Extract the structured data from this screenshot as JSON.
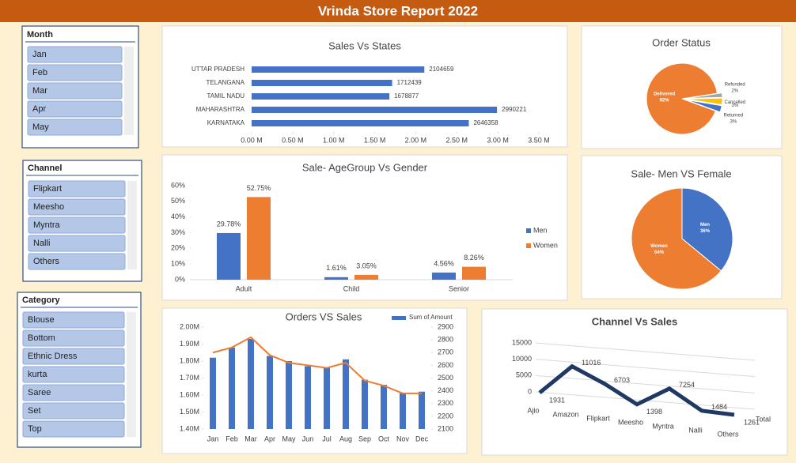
{
  "title": "Vrinda Store Report 2022",
  "slicers": [
    {
      "title": "Month",
      "items": [
        "Jan",
        "Feb",
        "Mar",
        "Apr",
        "May"
      ]
    },
    {
      "title": "Channel",
      "items": [
        "Flipkart",
        "Meesho",
        "Myntra",
        "Nalli",
        "Others"
      ]
    },
    {
      "title": "Category",
      "items": [
        "Blouse",
        "Bottom",
        "Ethnic Dress",
        "kurta",
        "Saree",
        "Set",
        "Top"
      ]
    }
  ],
  "chart_data": [
    {
      "type": "bar",
      "orientation": "horizontal",
      "title": "Sales Vs States",
      "categories": [
        "UTTAR PRADESH",
        "TELANGANA",
        "TAMIL NADU",
        "MAHARASHTRA",
        "KARNATAKA"
      ],
      "values": [
        2104659,
        1712439,
        1678877,
        2990221,
        2646358
      ],
      "color": "#4472c4",
      "xlim": [
        0,
        3500000
      ],
      "xticks": [
        {
          "value": 0,
          "label": "0.00 M"
        },
        {
          "value": 500000,
          "label": "0.50 M"
        },
        {
          "value": 1000000,
          "label": "1.00 M"
        },
        {
          "value": 1500000,
          "label": "1.50 M"
        },
        {
          "value": 2000000,
          "label": "2.00 M"
        },
        {
          "value": 2500000,
          "label": "2.50 M"
        },
        {
          "value": 3000000,
          "label": "3.00 M"
        },
        {
          "value": 3500000,
          "label": "3.50 M"
        }
      ]
    },
    {
      "type": "pie",
      "title": "Order Status",
      "categories": [
        "Delivered",
        "Refunded",
        "Cancelled",
        "Returned"
      ],
      "values": [
        92,
        2,
        3,
        3
      ],
      "value_labels": [
        "92%",
        "2%",
        "3%",
        "3%"
      ],
      "colors": [
        "#ed7d31",
        "#a5a5a5",
        "#ffc000",
        "#4472c4"
      ]
    },
    {
      "type": "groupedbar",
      "title": "Sale- AgeGroup Vs Gender",
      "categories": [
        "Adult",
        "Child",
        "Senior"
      ],
      "series": [
        {
          "name": "Men",
          "color": "#4472c4",
          "values": [
            29.78,
            1.61,
            4.56
          ],
          "value_labels": [
            "29.78%",
            "1.61%",
            "4.56%"
          ]
        },
        {
          "name": "Women",
          "color": "#ed7d31",
          "values": [
            52.75,
            3.05,
            8.26
          ],
          "value_labels": [
            "52.75%",
            "3.05%",
            "8.26%"
          ]
        }
      ],
      "ylim": [
        0,
        60
      ],
      "yticks": [
        {
          "value": 0,
          "label": "0%"
        },
        {
          "value": 10,
          "label": "10%"
        },
        {
          "value": 20,
          "label": "20%"
        },
        {
          "value": 30,
          "label": "30%"
        },
        {
          "value": 40,
          "label": "40%"
        },
        {
          "value": 50,
          "label": "50%"
        },
        {
          "value": 60,
          "label": "60%"
        }
      ],
      "legend": "right"
    },
    {
      "type": "pie",
      "title": "Sale- Men VS Female",
      "categories": [
        "Men",
        "Women"
      ],
      "values": [
        36,
        64
      ],
      "value_labels": [
        "36%",
        "64%"
      ],
      "colors": [
        "#4472c4",
        "#ed7d31"
      ]
    },
    {
      "type": "combo",
      "title": "Orders VS Sales",
      "categories": [
        "Jan",
        "Feb",
        "Mar",
        "Apr",
        "May",
        "Jun",
        "Jul",
        "Aug",
        "Sep",
        "Oct",
        "Nov",
        "Dec"
      ],
      "series": [
        {
          "name": "Sum of Amount",
          "type": "bar",
          "color": "#4472c4",
          "values": [
            1820000,
            1880000,
            1930000,
            1830000,
            1800000,
            1770000,
            1760000,
            1810000,
            1690000,
            1660000,
            1610000,
            1620000
          ]
        },
        {
          "type": "line",
          "axis": "y2",
          "color": "#ed7d31",
          "values": [
            2700,
            2740,
            2820,
            2680,
            2620,
            2600,
            2580,
            2620,
            2480,
            2440,
            2380,
            2380
          ]
        }
      ],
      "ylim": [
        1400000,
        2000000
      ],
      "yticks": [
        {
          "value": 1400000,
          "label": "1.40M"
        },
        {
          "value": 1500000,
          "label": "1.50M"
        },
        {
          "value": 1600000,
          "label": "1.60M"
        },
        {
          "value": 1700000,
          "label": "1.70M"
        },
        {
          "value": 1800000,
          "label": "1.80M"
        },
        {
          "value": 1900000,
          "label": "1.90M"
        },
        {
          "value": 2000000,
          "label": "2.00M"
        }
      ],
      "y2lim": [
        2100,
        2900
      ],
      "y2ticks": [
        2100,
        2200,
        2300,
        2400,
        2500,
        2600,
        2700,
        2800,
        2900
      ],
      "legend": "top-right"
    },
    {
      "type": "line3d",
      "title": "Channel Vs Sales",
      "categories": [
        "Ajio",
        "Amazon",
        "Flipkart",
        "Meesho",
        "Myntra",
        "Nalli",
        "Others"
      ],
      "series": [
        {
          "name": "Total",
          "color": "#203864",
          "values": [
            1931,
            11016,
            6703,
            1398,
            7254,
            1484,
            1261
          ]
        }
      ],
      "ylim": [
        0,
        15000
      ],
      "yticks": [
        0,
        5000,
        10000,
        15000
      ],
      "grid": true
    }
  ]
}
